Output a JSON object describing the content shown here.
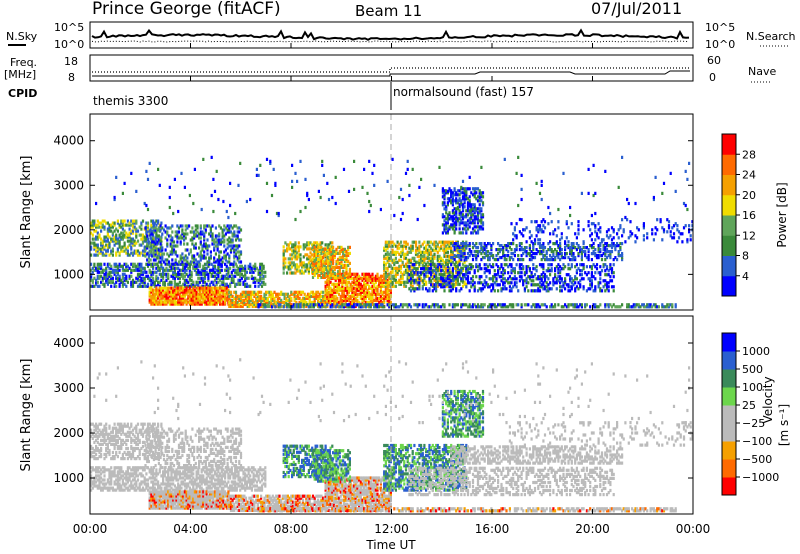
{
  "header": {
    "station": "Prince George (fitACF)",
    "beam": "Beam 11",
    "date": "07/Jul/2011"
  },
  "colors": {
    "power": [
      "#0000ff",
      "#2a5fd0",
      "#3a8a3a",
      "#5fa55a",
      "#f0dc00",
      "#f5a000",
      "#ff6a00",
      "#ff0000"
    ],
    "velocity": [
      "#ff0000",
      "#ff6a00",
      "#f5a000",
      "#bbbbbb",
      "#bbbbbb",
      "#6cd64c",
      "#3a8a5a",
      "#2a5fd0",
      "#0000ff"
    ]
  },
  "chart_data": [
    {
      "type": "line",
      "name": "noise-panel",
      "left_label": "N.Sky",
      "right_label": "N.Search",
      "left_ticks": [
        "10^5",
        "10^0"
      ],
      "right_ticks": [
        "10^5",
        "10^0"
      ]
    },
    {
      "type": "line",
      "name": "frequency-panel",
      "left_label": "Freq.",
      "left_unit": "[MHz]",
      "right_label": "Nave",
      "left_ticks": [
        "18",
        "8"
      ],
      "right_ticks": [
        "60",
        "0"
      ]
    },
    {
      "type": "table",
      "name": "cpid",
      "label": "CPID",
      "entries": [
        {
          "start": "00:00",
          "text": "themis 3300"
        },
        {
          "start": "12:00",
          "text": "normalsound (fast) 157"
        }
      ]
    },
    {
      "type": "heatmap",
      "name": "power",
      "ylabel": "Slant Range [km]",
      "yticks": [
        1000,
        2000,
        3000,
        4000
      ],
      "ylim": [
        200,
        4600
      ],
      "colorbar_label": "Power [dB]",
      "colorbar_ticks": [
        "4",
        "8",
        "12",
        "16",
        "20",
        "24",
        "28"
      ]
    },
    {
      "type": "heatmap",
      "name": "velocity",
      "ylabel": "Slant Range [km]",
      "yticks": [
        1000,
        2000,
        3000,
        4000
      ],
      "ylim": [
        200,
        4600
      ],
      "colorbar_label": "Velocity",
      "colorbar_unit": "[m s⁻¹]",
      "colorbar_ticks": [
        "1000",
        "500",
        "100",
        "25",
        "−25",
        "−100",
        "−500",
        "−1000"
      ],
      "xlabel": "Time UT",
      "xticks": [
        "00:00",
        "04:00",
        "08:00",
        "12:00",
        "16:00",
        "20:00",
        "00:00"
      ]
    }
  ]
}
